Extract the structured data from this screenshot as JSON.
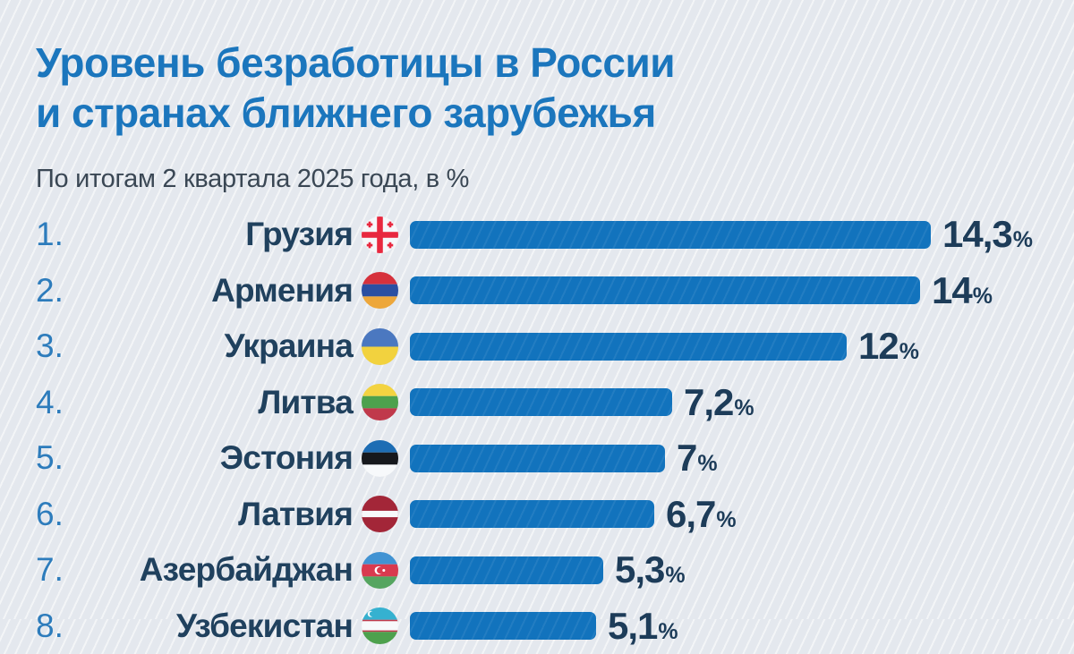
{
  "page": {
    "background_color": "#e4e8ee",
    "accent_color": "#1b76bd"
  },
  "header": {
    "title_line1": "Уровень безработицы в России",
    "title_line2": "и странах ближнего зарубежья",
    "subtitle": "По итогам 2 квартала 2025 года, в %"
  },
  "chart_data": {
    "type": "bar",
    "orientation": "horizontal",
    "title": "Уровень безработицы в России и странах ближнего зарубежья",
    "subtitle": "По итогам 2 квартала 2025 года, в %",
    "unit": "%",
    "value_axis_max": 14.3,
    "bar_color": "#1273bd",
    "rows": [
      {
        "rank": "1.",
        "country": "Грузия",
        "flag_icon": "georgia-flag-icon",
        "value": 14.3,
        "value_label": "14,3"
      },
      {
        "rank": "2.",
        "country": "Армения",
        "flag_icon": "armenia-flag-icon",
        "value": 14,
        "value_label": "14"
      },
      {
        "rank": "3.",
        "country": "Украина",
        "flag_icon": "ukraine-flag-icon",
        "value": 12,
        "value_label": "12"
      },
      {
        "rank": "4.",
        "country": "Литва",
        "flag_icon": "lithuania-flag-icon",
        "value": 7.2,
        "value_label": "7,2"
      },
      {
        "rank": "5.",
        "country": "Эстония",
        "flag_icon": "estonia-flag-icon",
        "value": 7,
        "value_label": "7"
      },
      {
        "rank": "6.",
        "country": "Латвия",
        "flag_icon": "latvia-flag-icon",
        "value": 6.7,
        "value_label": "6,7"
      },
      {
        "rank": "7.",
        "country": "Азербайджан",
        "flag_icon": "azerbaijan-flag-icon",
        "value": 5.3,
        "value_label": "5,3"
      },
      {
        "rank": "8.",
        "country": "Узбекистан",
        "flag_icon": "uzbekistan-flag-icon",
        "value": 5.1,
        "value_label": "5,1"
      }
    ]
  }
}
